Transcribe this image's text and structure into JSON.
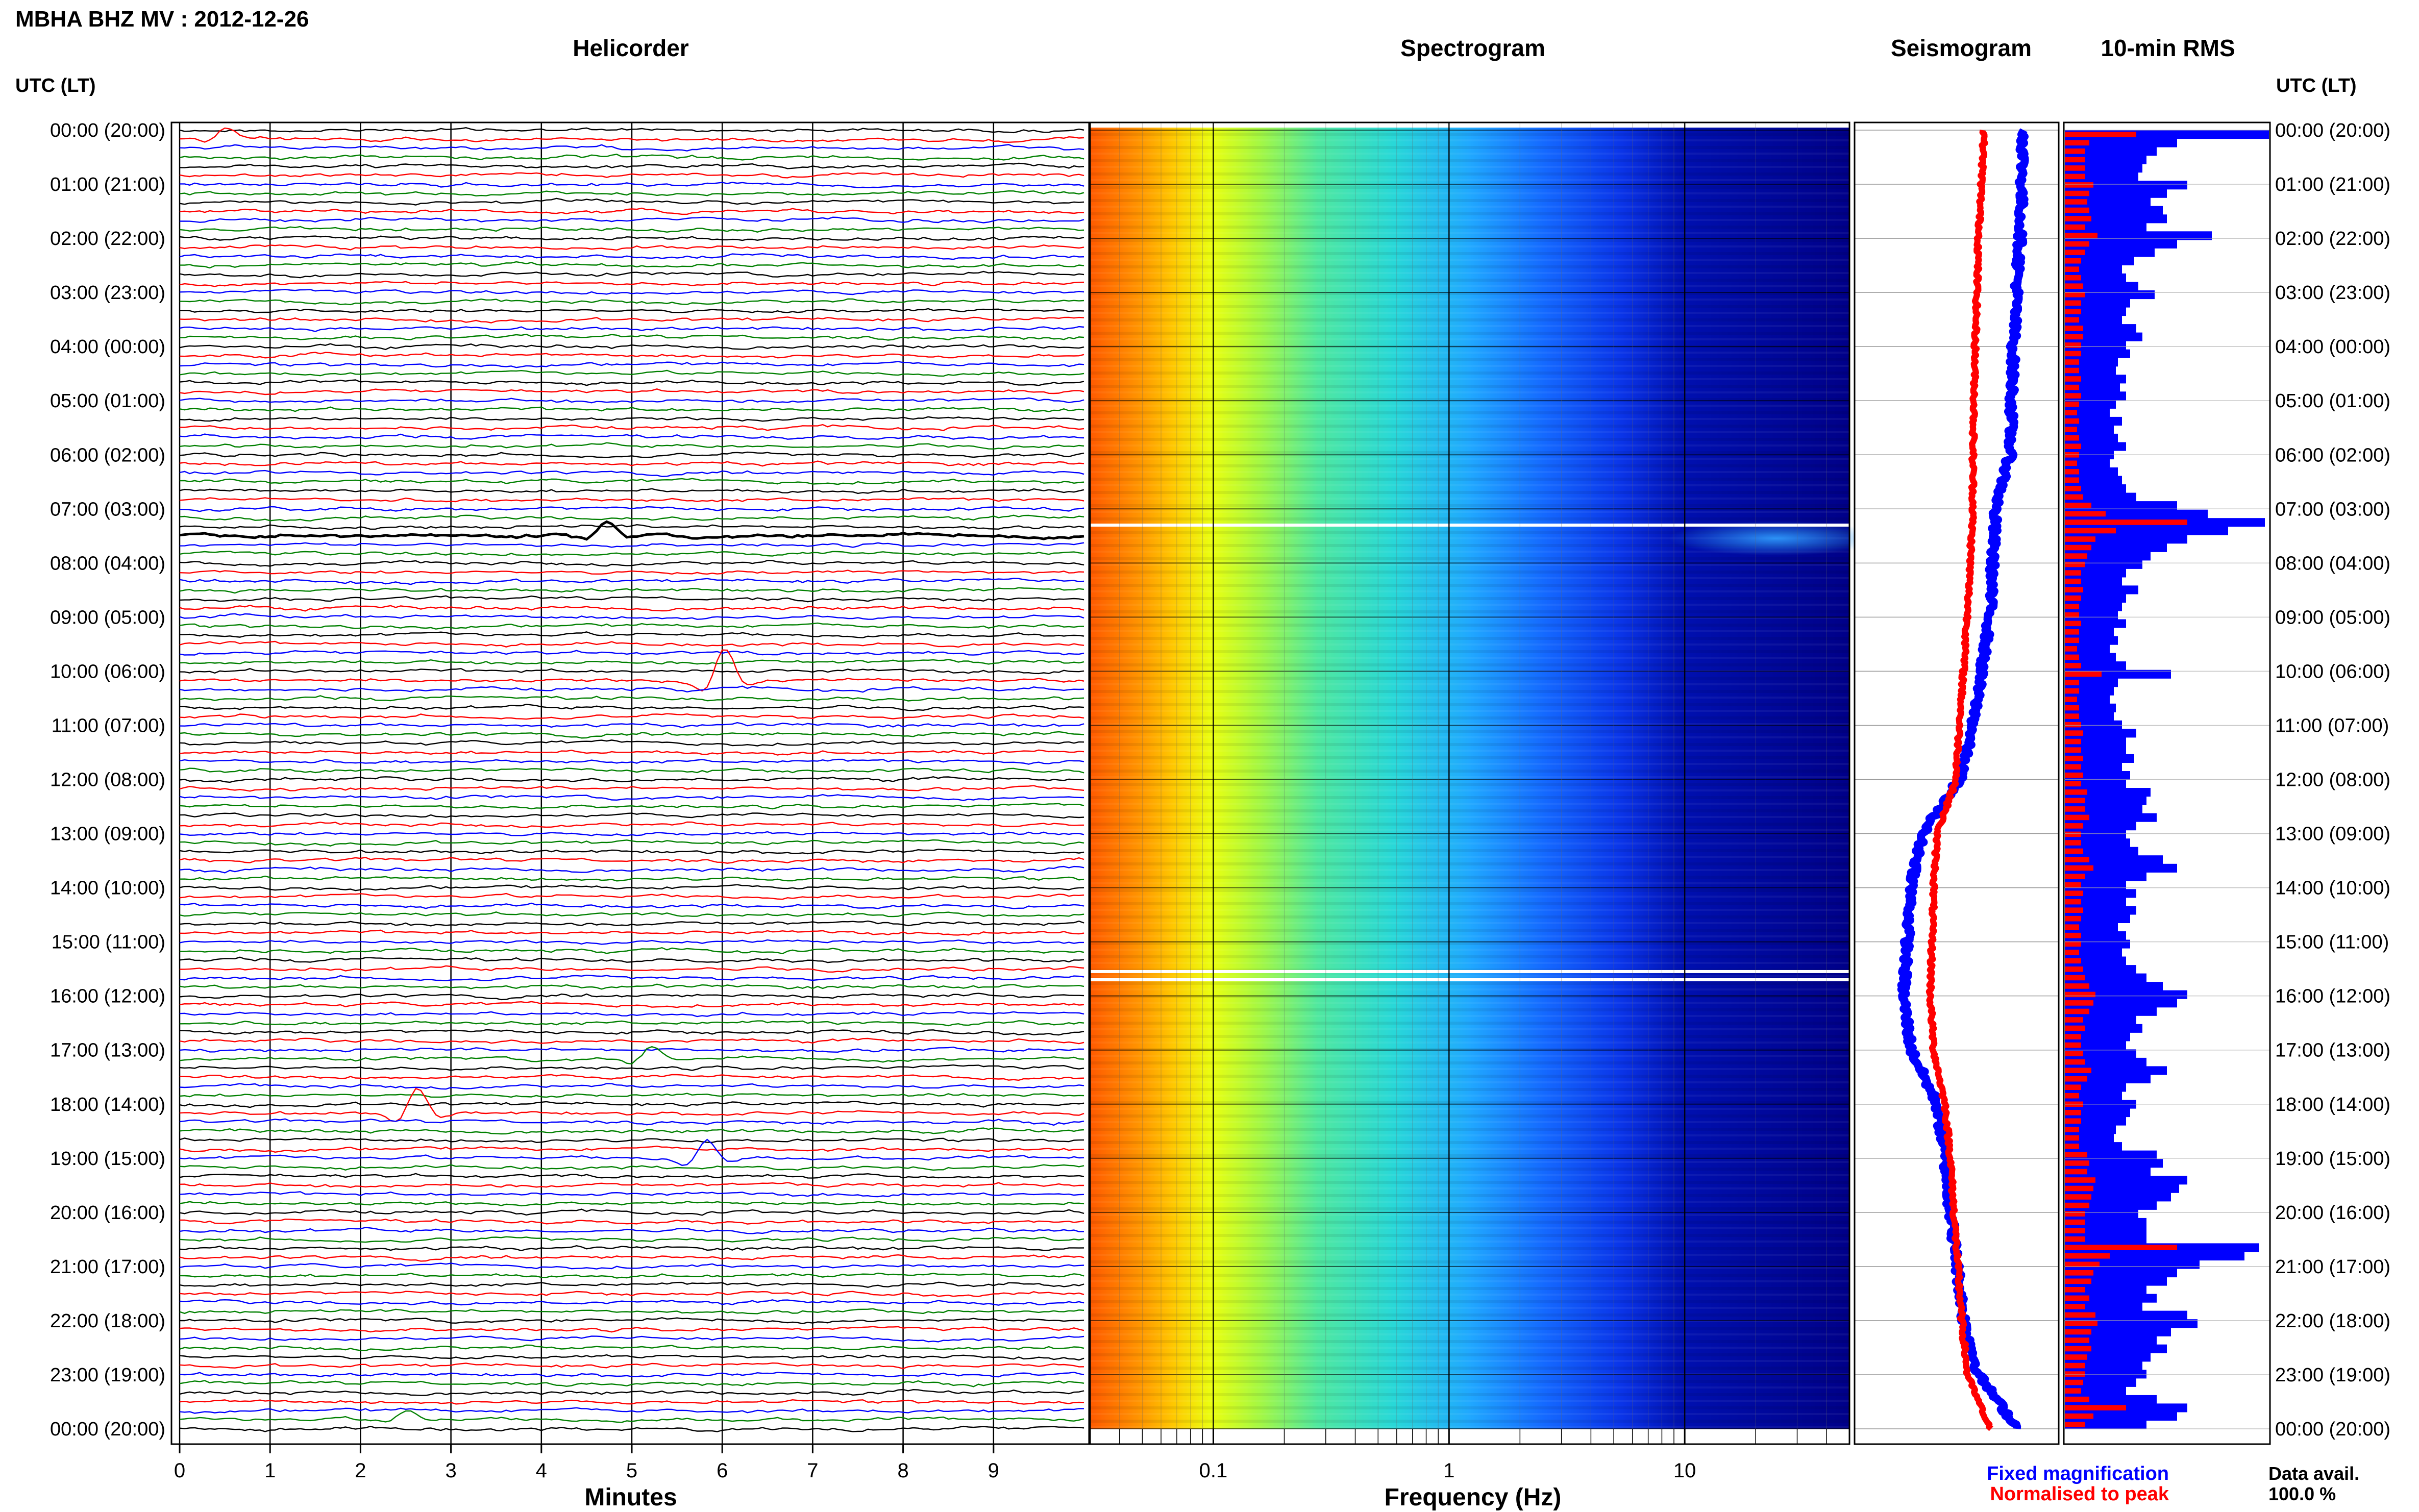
{
  "header": {
    "title": "MBHA BHZ MV : 2012-12-26"
  },
  "panels": {
    "helicorder": {
      "title": "Helicorder",
      "xlabel": "Minutes"
    },
    "spectrogram": {
      "title": "Spectrogram",
      "xlabel": "Frequency (Hz)"
    },
    "seismogram": {
      "title": "Seismogram"
    },
    "rms": {
      "title": "10-min RMS"
    }
  },
  "axis": {
    "left_label": "UTC (LT)",
    "right_label": "UTC (LT)"
  },
  "legend": {
    "fixed": "Fixed magnification",
    "fixed_color": "#0000ff",
    "normalised": "Normalised to peak",
    "normalised_color": "#ff0000"
  },
  "data_avail": {
    "label": "Data avail.",
    "value": "100.0 %"
  },
  "chart_data": [
    {
      "type": "line",
      "panel": "Helicorder",
      "x_ticks": [
        "0",
        "1",
        "2",
        "3",
        "4",
        "5",
        "6",
        "7",
        "8",
        "9"
      ],
      "xlim": [
        0,
        10
      ],
      "rows_per_hour": 6,
      "trace_colors": [
        "#000000",
        "#ff0000",
        "#0000ff",
        "#008000"
      ],
      "time_labels": [
        "00:00 (20:00)",
        "01:00 (21:00)",
        "02:00 (22:00)",
        "03:00 (23:00)",
        "04:00 (00:00)",
        "05:00 (01:00)",
        "06:00 (02:00)",
        "07:00 (03:00)",
        "08:00 (04:00)",
        "09:00 (05:00)",
        "10:00 (06:00)",
        "11:00 (07:00)",
        "12:00 (08:00)",
        "13:00 (09:00)",
        "14:00 (10:00)",
        "15:00 (11:00)",
        "16:00 (12:00)",
        "17:00 (13:00)",
        "18:00 (14:00)",
        "19:00 (15:00)",
        "20:00 (16:00)",
        "21:00 (17:00)",
        "22:00 (18:00)",
        "23:00 (19:00)",
        "00:00 (20:00)"
      ],
      "events": [
        {
          "hour": 0.1,
          "minute": 0.5,
          "amp": 0.8
        },
        {
          "hour": 7.5,
          "minute": 4.7,
          "amp": 1.0
        },
        {
          "hour": 10.2,
          "minute": 6.0,
          "amp": 2.5
        },
        {
          "hour": 17.1,
          "minute": 5.2,
          "amp": 1.0
        },
        {
          "hour": 18.2,
          "minute": 2.6,
          "amp": 2.0
        },
        {
          "hour": 19.0,
          "minute": 5.8,
          "amp": 1.6
        },
        {
          "hour": 23.9,
          "minute": 2.5,
          "amp": 0.6
        }
      ]
    },
    {
      "type": "heatmap",
      "panel": "Spectrogram",
      "x_scale": "log",
      "xlim": [
        0.03,
        50
      ],
      "x_ticks": [
        "0.1",
        "1",
        "10"
      ],
      "x_tick_values": [
        0.1,
        1,
        10
      ],
      "colormap": [
        "#ff5000",
        "#ffaa00",
        "#ffff00",
        "#80ff60",
        "#30e0c0",
        "#2090ff",
        "#0040ff",
        "#000080"
      ],
      "gaps_hours": [
        7.3,
        15.55,
        15.7
      ]
    },
    {
      "type": "line",
      "panel": "Seismogram",
      "series": [
        {
          "name": "Fixed magnification",
          "color": "#0000ff",
          "hours": [
            0,
            2,
            4,
            6,
            7,
            9,
            11,
            12,
            13,
            14,
            16,
            17,
            18,
            19,
            20,
            22,
            23,
            24
          ],
          "values": [
            0.45,
            0.42,
            0.36,
            0.33,
            0.2,
            0.15,
            0.0,
            -0.12,
            -0.45,
            -0.55,
            -0.62,
            -0.55,
            -0.32,
            -0.25,
            -0.2,
            -0.08,
            0.05,
            0.4
          ]
        },
        {
          "name": "Normalised to peak",
          "color": "#ff0000",
          "hours": [
            0,
            2,
            4,
            6,
            7,
            9,
            11,
            12,
            13,
            14,
            16,
            17,
            18,
            19,
            20,
            22,
            23,
            24
          ],
          "values": [
            0.1,
            0.05,
            0.02,
            0.0,
            0.0,
            -0.05,
            -0.12,
            -0.15,
            -0.32,
            -0.35,
            -0.38,
            -0.35,
            -0.25,
            -0.2,
            -0.17,
            -0.1,
            -0.05,
            0.15
          ]
        }
      ]
    },
    {
      "type": "bar",
      "panel": "10-min RMS",
      "orientation": "horizontal",
      "series": [
        {
          "name": "Fixed magnification",
          "color": "#0000ff",
          "values": [
            1.0,
            0.55,
            0.45,
            0.4,
            0.38,
            0.36,
            0.6,
            0.5,
            0.42,
            0.48,
            0.5,
            0.4,
            0.72,
            0.55,
            0.44,
            0.34,
            0.28,
            0.3,
            0.36,
            0.44,
            0.32,
            0.3,
            0.28,
            0.35,
            0.38,
            0.3,
            0.32,
            0.26,
            0.25,
            0.3,
            0.27,
            0.3,
            0.25,
            0.22,
            0.28,
            0.24,
            0.26,
            0.3,
            0.24,
            0.22,
            0.26,
            0.28,
            0.3,
            0.35,
            0.55,
            0.7,
            0.98,
            0.8,
            0.6,
            0.5,
            0.42,
            0.38,
            0.3,
            0.28,
            0.36,
            0.3,
            0.28,
            0.26,
            0.3,
            0.24,
            0.26,
            0.22,
            0.25,
            0.3,
            0.52,
            0.26,
            0.24,
            0.22,
            0.25,
            0.24,
            0.28,
            0.35,
            0.3,
            0.3,
            0.34,
            0.28,
            0.32,
            0.3,
            0.42,
            0.4,
            0.38,
            0.45,
            0.35,
            0.3,
            0.32,
            0.36,
            0.48,
            0.55,
            0.4,
            0.3,
            0.35,
            0.3,
            0.35,
            0.32,
            0.26,
            0.3,
            0.32,
            0.28,
            0.3,
            0.35,
            0.4,
            0.48,
            0.6,
            0.55,
            0.45,
            0.35,
            0.38,
            0.32,
            0.3,
            0.35,
            0.4,
            0.5,
            0.42,
            0.3,
            0.28,
            0.35,
            0.32,
            0.3,
            0.25,
            0.24,
            0.28,
            0.45,
            0.48,
            0.42,
            0.6,
            0.56,
            0.52,
            0.45,
            0.36,
            0.4,
            0.4,
            0.4,
            0.95,
            0.88,
            0.66,
            0.55,
            0.5,
            0.4,
            0.45,
            0.38,
            0.6,
            0.65,
            0.52,
            0.45,
            0.5,
            0.42,
            0.38,
            0.4,
            0.35,
            0.3,
            0.45,
            0.6,
            0.55,
            0.4
          ]
        },
        {
          "name": "Normalised to peak",
          "color": "#ff0000",
          "values": [
            0.35,
            0.12,
            0.1,
            0.1,
            0.1,
            0.1,
            0.14,
            0.12,
            0.11,
            0.12,
            0.13,
            0.1,
            0.16,
            0.12,
            0.1,
            0.08,
            0.07,
            0.08,
            0.09,
            0.1,
            0.08,
            0.08,
            0.07,
            0.09,
            0.09,
            0.08,
            0.08,
            0.07,
            0.07,
            0.08,
            0.07,
            0.08,
            0.07,
            0.06,
            0.07,
            0.06,
            0.07,
            0.08,
            0.07,
            0.06,
            0.07,
            0.07,
            0.08,
            0.09,
            0.13,
            0.2,
            0.6,
            0.25,
            0.15,
            0.13,
            0.11,
            0.1,
            0.08,
            0.08,
            0.09,
            0.08,
            0.07,
            0.07,
            0.08,
            0.07,
            0.07,
            0.06,
            0.07,
            0.08,
            0.18,
            0.07,
            0.07,
            0.06,
            0.07,
            0.07,
            0.08,
            0.09,
            0.08,
            0.08,
            0.09,
            0.08,
            0.09,
            0.08,
            0.11,
            0.1,
            0.1,
            0.12,
            0.09,
            0.08,
            0.08,
            0.09,
            0.12,
            0.14,
            0.1,
            0.08,
            0.09,
            0.08,
            0.09,
            0.08,
            0.07,
            0.08,
            0.08,
            0.07,
            0.08,
            0.09,
            0.1,
            0.12,
            0.15,
            0.14,
            0.12,
            0.09,
            0.1,
            0.08,
            0.08,
            0.09,
            0.1,
            0.13,
            0.11,
            0.08,
            0.07,
            0.09,
            0.08,
            0.08,
            0.07,
            0.07,
            0.07,
            0.11,
            0.12,
            0.11,
            0.15,
            0.14,
            0.13,
            0.12,
            0.1,
            0.1,
            0.1,
            0.1,
            0.55,
            0.22,
            0.17,
            0.14,
            0.13,
            0.1,
            0.12,
            0.1,
            0.15,
            0.16,
            0.13,
            0.12,
            0.13,
            0.11,
            0.1,
            0.1,
            0.09,
            0.08,
            0.12,
            0.3,
            0.14,
            0.1
          ]
        }
      ]
    }
  ]
}
